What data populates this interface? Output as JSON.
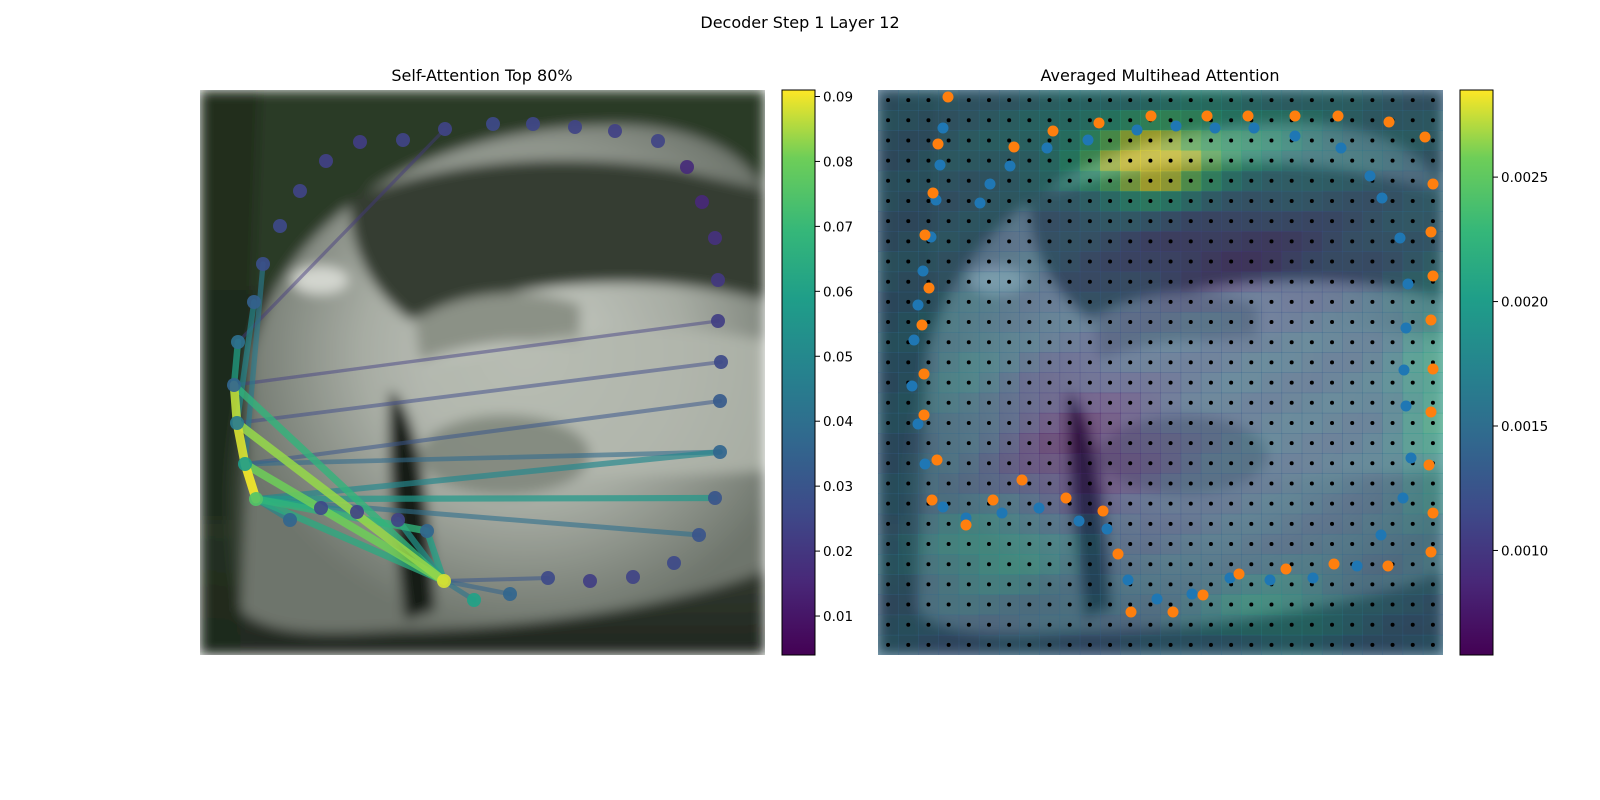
{
  "figure": {
    "title": "Decoder Step 1 Layer 12"
  },
  "chart_data": [
    {
      "type": "scatter",
      "title": "Self-Attention Top 80%",
      "background": "blurred photo of a silver car",
      "colormap": "viridis",
      "colorbar": {
        "ticks": [
          "0.01",
          "0.02",
          "0.03",
          "0.04",
          "0.05",
          "0.06",
          "0.07",
          "0.08",
          "0.09"
        ],
        "range": [
          0.004,
          0.091
        ]
      },
      "points": [
        {
          "x": 266,
          "y": 509,
          "v": 0.075
        },
        {
          "x": 255,
          "y": 474,
          "v": 0.058
        },
        {
          "x": 247,
          "y": 433,
          "v": 0.045
        },
        {
          "x": 244,
          "y": 395,
          "v": 0.036
        },
        {
          "x": 248,
          "y": 352,
          "v": 0.04
        },
        {
          "x": 264,
          "y": 312,
          "v": 0.034
        },
        {
          "x": 273,
          "y": 274,
          "v": 0.028
        },
        {
          "x": 290,
          "y": 236,
          "v": 0.026
        },
        {
          "x": 310,
          "y": 201,
          "v": 0.024
        },
        {
          "x": 336,
          "y": 171,
          "v": 0.023
        },
        {
          "x": 370,
          "y": 152,
          "v": 0.022
        },
        {
          "x": 413,
          "y": 150,
          "v": 0.024
        },
        {
          "x": 455,
          "y": 139,
          "v": 0.024
        },
        {
          "x": 503,
          "y": 134,
          "v": 0.026
        },
        {
          "x": 543,
          "y": 134,
          "v": 0.025
        },
        {
          "x": 585,
          "y": 137,
          "v": 0.024
        },
        {
          "x": 625,
          "y": 141,
          "v": 0.023
        },
        {
          "x": 668,
          "y": 151,
          "v": 0.024
        },
        {
          "x": 697,
          "y": 177,
          "v": 0.016
        },
        {
          "x": 712,
          "y": 212,
          "v": 0.015
        },
        {
          "x": 725,
          "y": 248,
          "v": 0.018
        },
        {
          "x": 728,
          "y": 290,
          "v": 0.02
        },
        {
          "x": 728,
          "y": 331,
          "v": 0.022
        },
        {
          "x": 731,
          "y": 372,
          "v": 0.026
        },
        {
          "x": 730,
          "y": 411,
          "v": 0.032
        },
        {
          "x": 730,
          "y": 462,
          "v": 0.036
        },
        {
          "x": 725,
          "y": 508,
          "v": 0.03
        },
        {
          "x": 709,
          "y": 545,
          "v": 0.03
        },
        {
          "x": 684,
          "y": 573,
          "v": 0.026
        },
        {
          "x": 643,
          "y": 587,
          "v": 0.024
        },
        {
          "x": 600,
          "y": 591,
          "v": 0.022
        },
        {
          "x": 558,
          "y": 588,
          "v": 0.026
        },
        {
          "x": 520,
          "y": 604,
          "v": 0.036
        },
        {
          "x": 484,
          "y": 610,
          "v": 0.06
        },
        {
          "x": 454,
          "y": 591,
          "v": 0.088
        },
        {
          "x": 437,
          "y": 541,
          "v": 0.036
        },
        {
          "x": 408,
          "y": 530,
          "v": 0.024
        },
        {
          "x": 367,
          "y": 522,
          "v": 0.024
        },
        {
          "x": 331,
          "y": 518,
          "v": 0.026
        },
        {
          "x": 300,
          "y": 530,
          "v": 0.036
        }
      ],
      "edges": [
        {
          "a": 0,
          "b": 1,
          "v": 0.09
        },
        {
          "a": 1,
          "b": 2,
          "v": 0.088
        },
        {
          "a": 2,
          "b": 3,
          "v": 0.086
        },
        {
          "a": 3,
          "b": 4,
          "v": 0.06
        },
        {
          "a": 2,
          "b": 5,
          "v": 0.05
        },
        {
          "a": 1,
          "b": 6,
          "v": 0.045
        },
        {
          "a": 34,
          "b": 2,
          "v": 0.083
        },
        {
          "a": 34,
          "b": 1,
          "v": 0.08
        },
        {
          "a": 34,
          "b": 3,
          "v": 0.068
        },
        {
          "a": 34,
          "b": 0,
          "v": 0.064
        },
        {
          "a": 34,
          "b": 35,
          "v": 0.06
        },
        {
          "a": 34,
          "b": 36,
          "v": 0.055
        },
        {
          "a": 34,
          "b": 33,
          "v": 0.042
        },
        {
          "a": 34,
          "b": 32,
          "v": 0.035
        },
        {
          "a": 34,
          "b": 31,
          "v": 0.03
        },
        {
          "a": 0,
          "b": 35,
          "v": 0.068
        },
        {
          "a": 0,
          "b": 38,
          "v": 0.062
        },
        {
          "a": 0,
          "b": 39,
          "v": 0.05
        },
        {
          "a": 0,
          "b": 25,
          "v": 0.05
        },
        {
          "a": 0,
          "b": 26,
          "v": 0.056
        },
        {
          "a": 0,
          "b": 27,
          "v": 0.04
        },
        {
          "a": 1,
          "b": 25,
          "v": 0.038
        },
        {
          "a": 1,
          "b": 24,
          "v": 0.03
        },
        {
          "a": 2,
          "b": 23,
          "v": 0.026
        },
        {
          "a": 3,
          "b": 22,
          "v": 0.022
        },
        {
          "a": 0,
          "b": 37,
          "v": 0.05
        },
        {
          "a": 4,
          "b": 12,
          "v": 0.02
        }
      ]
    },
    {
      "type": "heatmap",
      "title": "Averaged Multihead Attention",
      "background": "blurred photo of a silver car with attention heatmap overlay",
      "colormap": "viridis",
      "colorbar": {
        "ticks": [
          "0.0010",
          "0.0015",
          "0.0020",
          "0.0025"
        ],
        "range": [
          0.00058,
          0.00285
        ]
      },
      "grid_n": 28,
      "grid": [
        "0000000000000000000000000000",
        "0000000000000000000000000000",
        "0000000000000000000000000000",
        "0000000000000000000000000000",
        "0000000000000000000000000000",
        "0000000000000000000000000000",
        "0000000000000000000000000000",
        "0000000000000000000000000000",
        "0000000000000000000000000000",
        "0000000000000000000000000000",
        "0000000000000000000000000000",
        "0000000000000000000000000000",
        "0000000000000000000000000000",
        "0000000000000000000000000000",
        "0000000000000000000000000000",
        "0000000000000000000000000000",
        "0000000000000000000000000000",
        "0000000000000000000000000000",
        "0000000000000000000000000000",
        "0000000000000000000000000000",
        "0000000000000000000000000000",
        "0000000000000000000000000000",
        "0000000000000000000000000000",
        "0000000000000000000000000000",
        "0000000000000000000000000000",
        "0000000000000000000000000000",
        "0000000000000000000000000000",
        "0000000000000000000000000000"
      ],
      "series": [
        {
          "name": "blue",
          "color": "#1f77b4",
          "points": [
            [
              953,
              138
            ],
            [
              950,
              175
            ],
            [
              946,
              210
            ],
            [
              941,
              247
            ],
            [
              933,
              281
            ],
            [
              928,
              315
            ],
            [
              924,
              350
            ],
            [
              922,
              396
            ],
            [
              928,
              434
            ],
            [
              935,
              474
            ],
            [
              953,
              517
            ],
            [
              976,
              528
            ],
            [
              1012,
              523
            ],
            [
              1049,
              518
            ],
            [
              1089,
              531
            ],
            [
              1117,
              539
            ],
            [
              1138,
              590
            ],
            [
              1167,
              609
            ],
            [
              1202,
              604
            ],
            [
              1240,
              588
            ],
            [
              1280,
              590
            ],
            [
              1323,
              588
            ],
            [
              1367,
              576
            ],
            [
              1391,
              545
            ],
            [
              1413,
              508
            ],
            [
              1421,
              468
            ],
            [
              1416,
              416
            ],
            [
              1414,
              380
            ],
            [
              1416,
              338
            ],
            [
              1418,
              294
            ],
            [
              1410,
              248
            ],
            [
              1392,
              208
            ],
            [
              1380,
              186
            ],
            [
              1351,
              158
            ],
            [
              1305,
              146
            ],
            [
              1264,
              138
            ],
            [
              1225,
              138
            ],
            [
              1186,
              136
            ],
            [
              1147,
              140
            ],
            [
              1098,
              150
            ],
            [
              1057,
              158
            ],
            [
              1020,
              176
            ],
            [
              1000,
              194
            ],
            [
              990,
              213
            ]
          ]
        },
        {
          "name": "orange",
          "color": "#ff7f0e",
          "points": [
            [
              958,
              107
            ],
            [
              948,
              154
            ],
            [
              943,
              203
            ],
            [
              935,
              245
            ],
            [
              939,
              298
            ],
            [
              932,
              335
            ],
            [
              934,
              384
            ],
            [
              934,
              425
            ],
            [
              947,
              470
            ],
            [
              942,
              510
            ],
            [
              976,
              535
            ],
            [
              1003,
              510
            ],
            [
              1032,
              490
            ],
            [
              1076,
              508
            ],
            [
              1113,
              521
            ],
            [
              1128,
              564
            ],
            [
              1141,
              622
            ],
            [
              1183,
              622
            ],
            [
              1213,
              605
            ],
            [
              1249,
              584
            ],
            [
              1296,
              579
            ],
            [
              1344,
              574
            ],
            [
              1398,
              576
            ],
            [
              1441,
              562
            ],
            [
              1443,
              523
            ],
            [
              1439,
              475
            ],
            [
              1441,
              422
            ],
            [
              1443,
              379
            ],
            [
              1441,
              330
            ],
            [
              1443,
              286
            ],
            [
              1441,
              242
            ],
            [
              1443,
              194
            ],
            [
              1435,
              147
            ],
            [
              1399,
              132
            ],
            [
              1348,
              126
            ],
            [
              1305,
              126
            ],
            [
              1258,
              126
            ],
            [
              1217,
              126
            ],
            [
              1161,
              126
            ],
            [
              1109,
              133
            ],
            [
              1063,
              141
            ],
            [
              1024,
              157
            ]
          ]
        }
      ]
    }
  ]
}
